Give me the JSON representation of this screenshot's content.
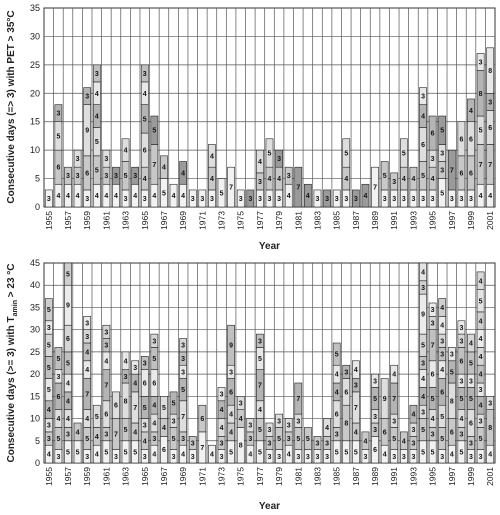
{
  "chart_data": [
    {
      "type": "bar",
      "stacked": true,
      "ylabel": "Consecutive days (=> 3) with  PET > 35°C",
      "xlabel": "Year",
      "ylim": [
        0,
        35
      ],
      "yticks": [
        0,
        5,
        10,
        15,
        20,
        25,
        30,
        35
      ],
      "grid": true,
      "years": [
        1955,
        1956,
        1957,
        1958,
        1959,
        1960,
        1961,
        1962,
        1963,
        1964,
        1965,
        1966,
        1967,
        1968,
        1969,
        1970,
        1971,
        1972,
        1973,
        1974,
        1975,
        1976,
        1977,
        1978,
        1979,
        1980,
        1981,
        1982,
        1983,
        1984,
        1985,
        1986,
        1987,
        1988,
        1989,
        1990,
        1991,
        1992,
        1993,
        1994,
        1995,
        1996,
        1997,
        1998,
        1999,
        2000,
        2001
      ],
      "xtick_labels": [
        "1955",
        "1957",
        "1959",
        "1961",
        "1963",
        "1965",
        "1967",
        "1969",
        "1971",
        "1973",
        "1975",
        "1977",
        "1979",
        "1981",
        "1983",
        "1985",
        "1987",
        "1989",
        "1991",
        "1993",
        "1995",
        "1997",
        "1999",
        "2001"
      ],
      "stacks": [
        [
          3
        ],
        [
          4,
          6,
          5,
          3
        ],
        [
          4,
          3
        ],
        [
          4,
          3,
          3
        ],
        [
          3,
          6,
          9,
          3
        ],
        [
          4,
          5,
          5,
          4,
          4,
          3
        ],
        [
          4,
          3,
          3
        ],
        [
          4,
          3
        ],
        [
          3,
          5,
          4
        ],
        [
          4,
          3
        ],
        [
          3,
          4,
          6,
          5,
          4,
          3
        ],
        [
          4,
          7,
          5
        ],
        [
          5,
          4
        ],
        [
          4
        ],
        [
          4,
          4
        ],
        [
          3
        ],
        [
          3
        ],
        [
          3,
          4,
          4
        ],
        [
          5
        ],
        [
          7
        ],
        [
          3
        ],
        [
          3
        ],
        [
          3,
          3,
          4
        ],
        [
          3,
          4,
          5
        ],
        [
          3,
          4,
          3
        ],
        [
          4,
          3
        ],
        [
          7
        ],
        [
          4
        ],
        [
          3
        ],
        [
          3
        ],
        [
          3
        ],
        [
          3,
          4,
          5
        ],
        [
          3
        ],
        [
          4
        ],
        [
          7
        ],
        [
          3,
          5
        ],
        [
          3,
          3
        ],
        [
          3,
          4,
          5
        ],
        [
          3,
          4
        ],
        [
          3,
          5,
          6,
          4,
          3
        ],
        [
          3,
          4,
          3,
          6
        ],
        [
          5,
          3,
          3,
          5
        ],
        [
          3,
          7
        ],
        [
          3,
          6,
          6
        ],
        [
          3,
          6,
          6,
          4
        ],
        [
          4,
          7,
          5,
          8,
          3
        ],
        [
          4,
          7,
          6,
          3,
          8
        ]
      ],
      "dark_top_years": [
        1962,
        1964,
        1966,
        1969,
        1976,
        1979,
        1981,
        1982,
        1984,
        1987,
        1988,
        1996,
        1997
      ]
    },
    {
      "type": "bar",
      "stacked": true,
      "ylabel": "Consecutive days (>= 3) with T",
      "ylabel_subscript": "amin",
      "ylabel_suffix": " > 23 °C",
      "xlabel": "Year",
      "ylim": [
        0,
        45
      ],
      "yticks": [
        0,
        5,
        10,
        15,
        20,
        25,
        30,
        35,
        40,
        45
      ],
      "grid": true,
      "years": [
        1955,
        1956,
        1957,
        1958,
        1959,
        1960,
        1961,
        1962,
        1963,
        1964,
        1965,
        1966,
        1967,
        1968,
        1969,
        1970,
        1971,
        1972,
        1973,
        1974,
        1975,
        1976,
        1977,
        1978,
        1979,
        1980,
        1981,
        1982,
        1983,
        1984,
        1985,
        1986,
        1987,
        1988,
        1989,
        1990,
        1991,
        1992,
        1993,
        1994,
        1995,
        1996,
        1997,
        1998,
        1999,
        2000,
        2001
      ],
      "xtick_labels": [
        "1955",
        "1957",
        "1959",
        "1961",
        "1963",
        "1965",
        "1967",
        "1969",
        "1971",
        "1973",
        "1975",
        "1977",
        "1979",
        "1981",
        "1983",
        "1985",
        "1987",
        "1989",
        "1991",
        "1993",
        "1995",
        "1997",
        "1999",
        "2001"
      ],
      "stacks": [
        [
          4,
          3,
          3,
          4,
          5,
          5,
          5,
          3,
          5
        ],
        [
          3,
          5,
          4,
          6,
          3,
          5
        ],
        [
          5,
          3,
          4,
          4,
          4,
          5,
          6,
          9,
          5
        ],
        [
          5,
          4
        ],
        [
          3,
          5,
          4,
          7,
          4,
          4,
          3,
          3
        ],
        [
          4,
          4,
          5
        ],
        [
          5,
          3,
          6,
          7,
          4,
          3,
          3
        ],
        [
          3,
          7,
          6
        ],
        [
          5,
          5,
          8,
          3,
          4
        ],
        [
          5,
          4,
          7,
          4,
          3
        ],
        [
          3,
          4,
          3,
          5,
          6,
          3
        ],
        [
          4,
          3,
          4,
          4,
          6,
          5,
          3
        ],
        [
          6,
          4,
          5
        ],
        [
          3,
          5,
          3,
          5
        ],
        [
          4,
          3,
          7,
          5,
          3,
          3,
          3
        ],
        [
          3,
          3
        ],
        [
          7,
          6
        ],
        [
          4
        ],
        [
          3,
          3,
          4,
          4,
          3
        ],
        [
          5,
          4,
          4,
          6,
          3,
          9
        ],
        [
          8,
          4,
          3
        ],
        [
          4,
          3,
          3
        ],
        [
          5,
          5,
          4,
          7,
          5,
          3
        ],
        [
          3,
          3,
          3
        ],
        [
          3,
          5,
          3
        ],
        [
          4,
          3,
          3
        ],
        [
          3,
          5,
          3,
          7
        ],
        [
          3,
          5
        ],
        [
          3,
          3
        ],
        [
          3,
          3,
          4
        ],
        [
          5,
          3,
          6,
          4,
          4,
          5
        ],
        [
          5,
          8,
          6,
          3
        ],
        [
          5,
          4,
          7,
          3,
          4
        ],
        [
          3,
          4
        ],
        [
          6,
          3,
          3,
          5,
          3
        ],
        [
          4,
          6,
          9
        ],
        [
          3,
          5,
          3,
          7,
          4
        ],
        [
          3,
          4
        ],
        [
          3,
          3,
          3,
          4
        ],
        [
          5,
          5,
          3,
          4,
          4,
          3,
          5,
          9,
          3,
          4
        ],
        [
          5,
          3,
          4,
          5,
          6,
          7,
          3,
          3
        ],
        [
          3,
          5,
          5,
          6,
          4,
          3,
          3,
          4,
          4
        ],
        [
          4,
          6,
          8,
          5,
          3
        ],
        [
          5,
          3,
          4,
          5,
          3,
          6,
          3,
          3
        ],
        [
          3,
          3,
          6,
          5,
          3,
          5,
          4
        ],
        [
          3,
          5,
          3,
          4,
          3,
          4,
          4,
          4,
          4,
          5,
          4
        ],
        [
          4,
          8,
          3
        ]
      ],
      "dark_top_years": []
    }
  ]
}
